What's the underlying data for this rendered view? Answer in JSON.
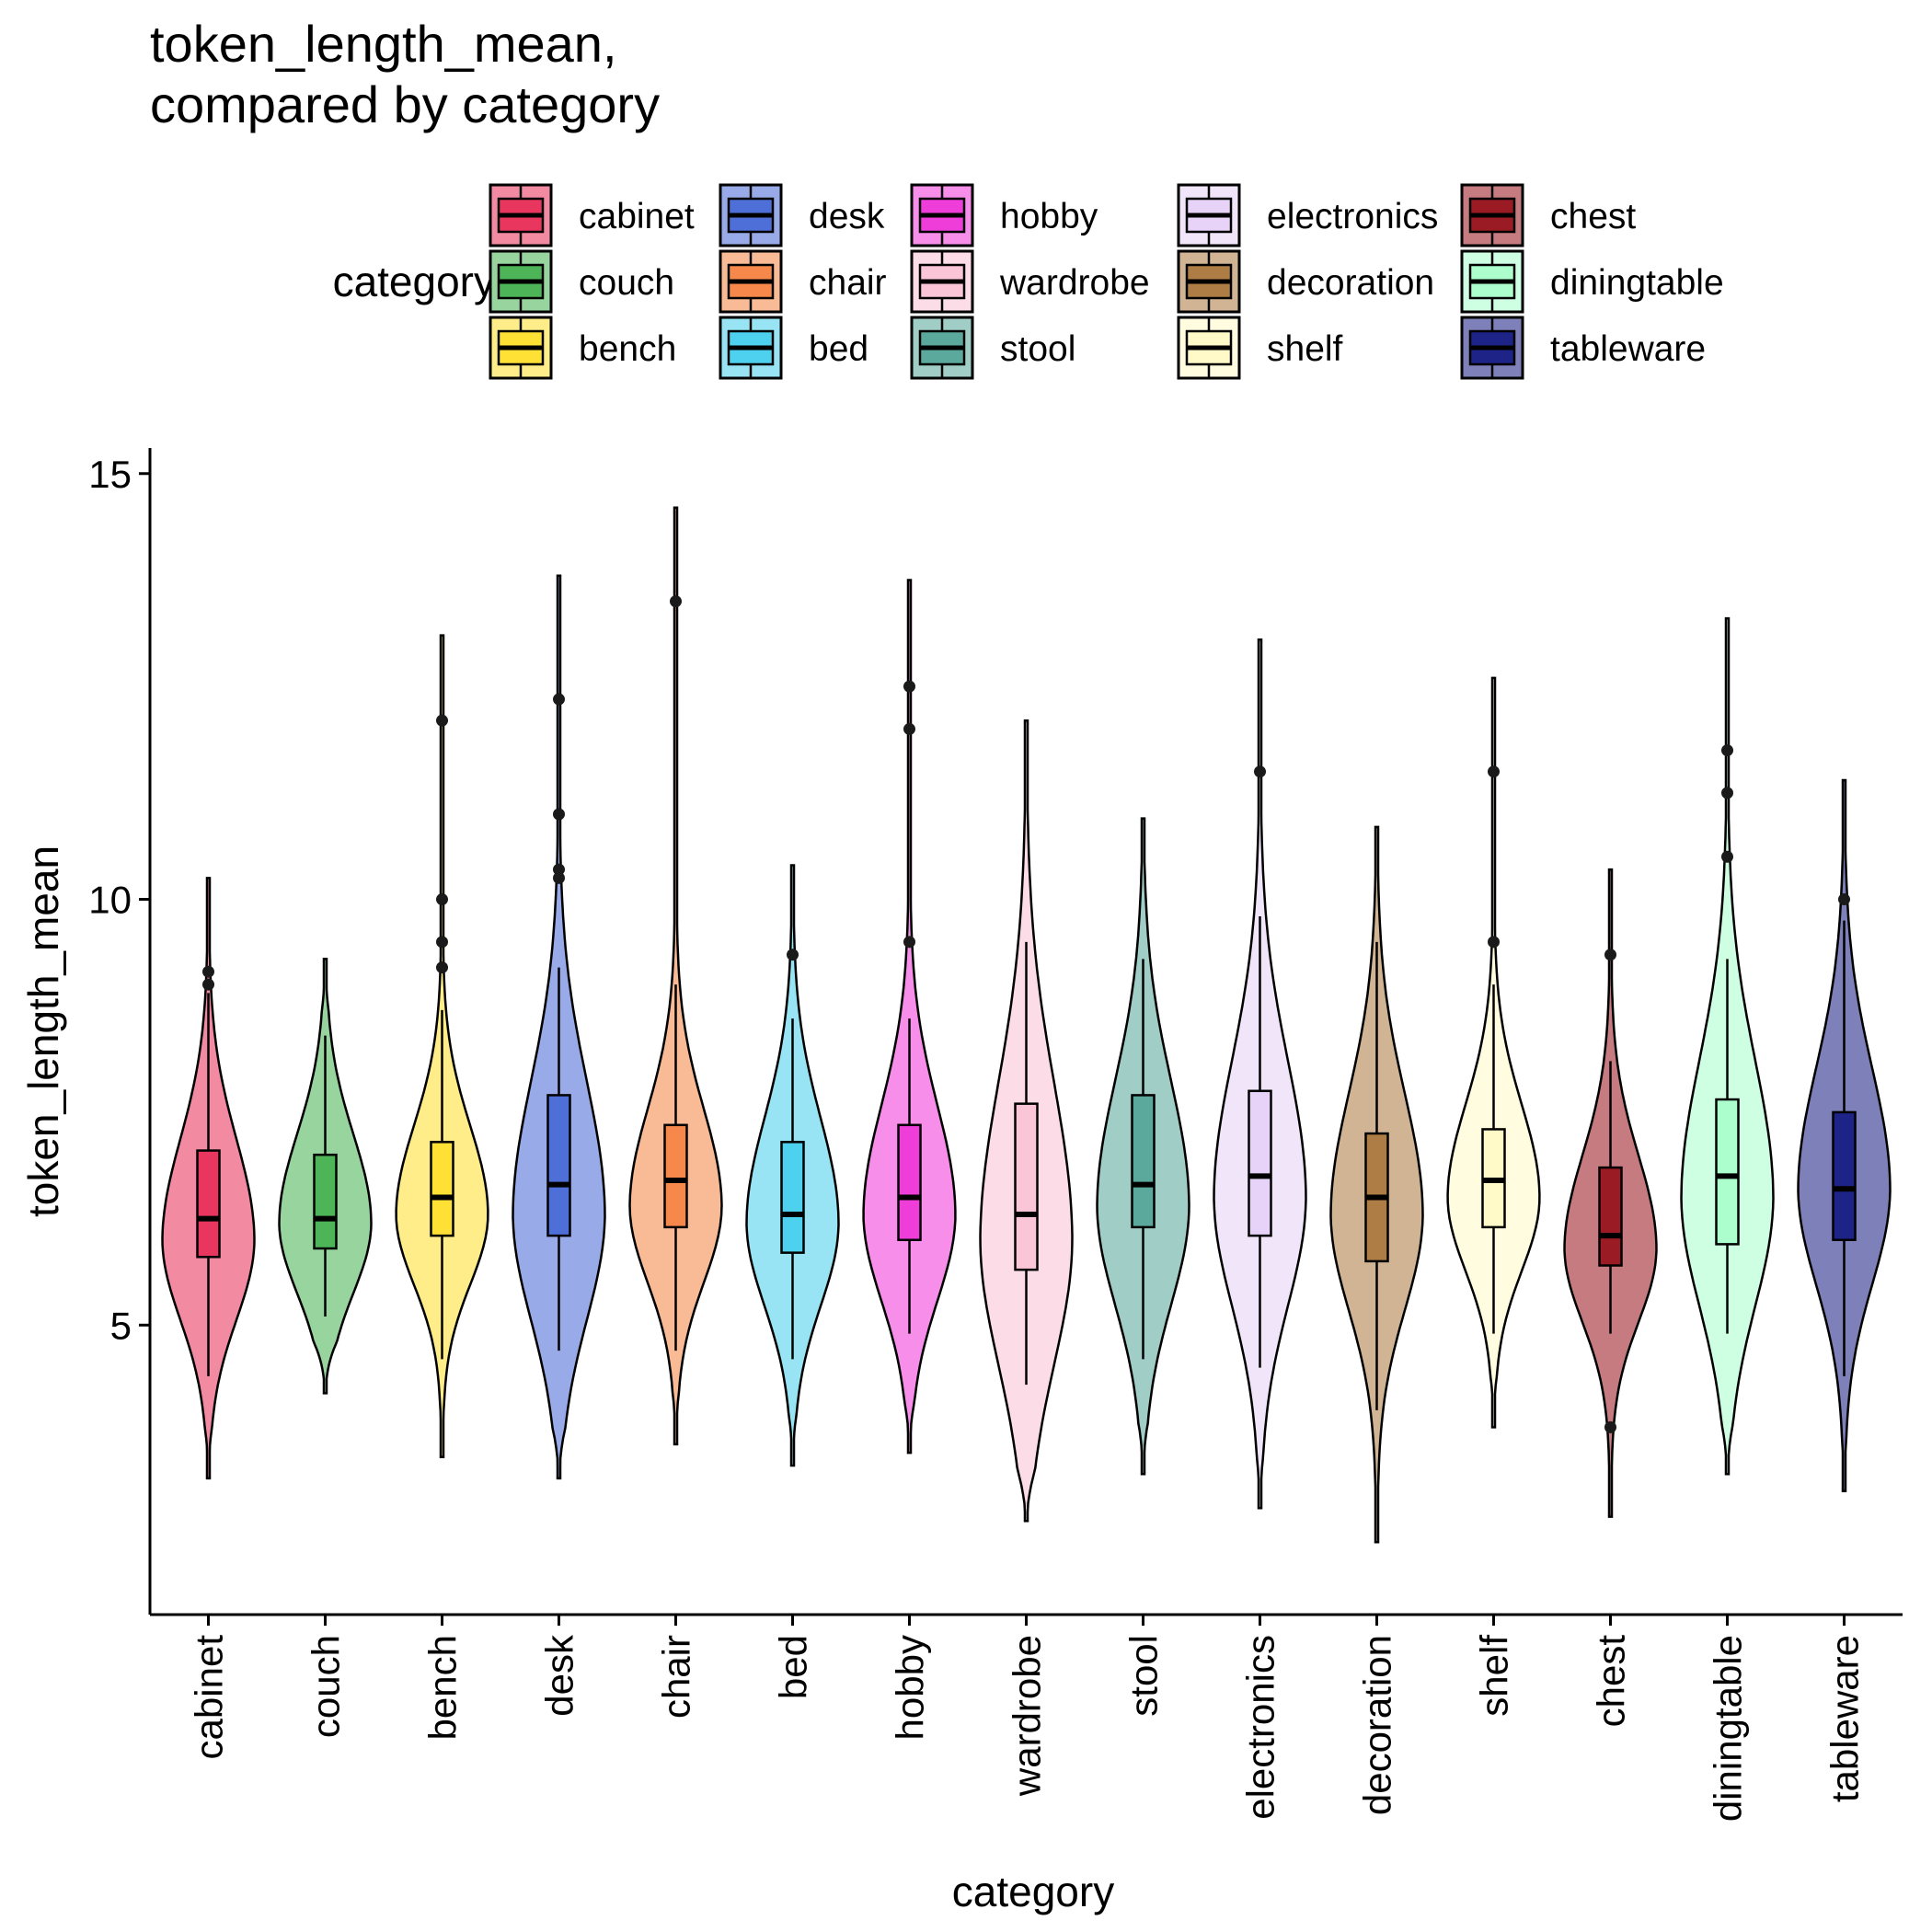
{
  "chart_data": {
    "type": "violin",
    "title_lines": [
      "token_length_mean,",
      "compared by category"
    ],
    "xlabel": "category",
    "ylabel": "token_length_mean",
    "ylim": [
      1.6,
      15.3
    ],
    "yticks": [
      5,
      10,
      15
    ],
    "grid": false,
    "legend": {
      "title": "category",
      "placement": "top",
      "columns": [
        [
          "cabinet",
          "couch",
          "bench"
        ],
        [
          "desk",
          "chair",
          "bed"
        ],
        [
          "hobby",
          "wardrobe",
          "stool"
        ],
        [
          "electronics",
          "decoration",
          "shelf"
        ],
        [
          "chest",
          "diningtable",
          "tableware"
        ]
      ]
    },
    "series": [
      {
        "category": "cabinet",
        "color": "#E8365E",
        "min": 3.2,
        "q1": 5.8,
        "median": 6.25,
        "q3": 7.05,
        "max": 10.25,
        "whisker_low": 4.4,
        "whisker_high": 8.9,
        "outliers": [
          9.0,
          9.15
        ],
        "density_peak": 6.0
      },
      {
        "category": "couch",
        "color": "#4DB457",
        "min": 4.2,
        "q1": 5.9,
        "median": 6.25,
        "q3": 7.0,
        "max": 9.3,
        "whisker_low": 5.1,
        "whisker_high": 8.4,
        "outliers": [],
        "density_peak": 6.2
      },
      {
        "category": "bench",
        "color": "#FFE034",
        "min": 3.45,
        "q1": 6.05,
        "median": 6.5,
        "q3": 7.15,
        "max": 13.1,
        "whisker_low": 4.6,
        "whisker_high": 8.7,
        "outliers": [
          9.2,
          9.5,
          10.0,
          12.1
        ],
        "density_peak": 6.3
      },
      {
        "category": "desk",
        "color": "#4E6FD8",
        "min": 3.2,
        "q1": 6.05,
        "median": 6.65,
        "q3": 7.7,
        "max": 13.8,
        "whisker_low": 4.7,
        "whisker_high": 9.2,
        "outliers": [
          10.25,
          10.35,
          11.0,
          12.35
        ],
        "density_peak": 6.3
      },
      {
        "category": "chair",
        "color": "#F5884A",
        "min": 3.6,
        "q1": 6.15,
        "median": 6.7,
        "q3": 7.35,
        "max": 14.6,
        "whisker_low": 4.7,
        "whisker_high": 9.0,
        "outliers": [
          13.5
        ],
        "density_peak": 6.4
      },
      {
        "category": "bed",
        "color": "#4DD1EE",
        "min": 3.35,
        "q1": 5.85,
        "median": 6.3,
        "q3": 7.15,
        "max": 10.4,
        "whisker_low": 4.6,
        "whisker_high": 8.6,
        "outliers": [
          9.35
        ],
        "density_peak": 6.2
      },
      {
        "category": "hobby",
        "color": "#EF3DDA",
        "min": 3.5,
        "q1": 6.0,
        "median": 6.5,
        "q3": 7.35,
        "max": 13.75,
        "whisker_low": 4.9,
        "whisker_high": 8.6,
        "outliers": [
          9.5,
          12.0,
          12.5
        ],
        "density_peak": 6.3
      },
      {
        "category": "wardrobe",
        "color": "#FAC5D6",
        "min": 2.7,
        "q1": 5.65,
        "median": 6.3,
        "q3": 7.6,
        "max": 12.1,
        "whisker_low": 4.3,
        "whisker_high": 9.5,
        "outliers": [],
        "density_peak": 6.0
      },
      {
        "category": "stool",
        "color": "#5BA99C",
        "min": 3.25,
        "q1": 6.15,
        "median": 6.65,
        "q3": 7.7,
        "max": 10.95,
        "whisker_low": 4.6,
        "whisker_high": 9.3,
        "outliers": [],
        "density_peak": 6.4
      },
      {
        "category": "electronics",
        "color": "#E6D3F7",
        "min": 2.85,
        "q1": 6.05,
        "median": 6.75,
        "q3": 7.75,
        "max": 13.05,
        "whisker_low": 4.5,
        "whisker_high": 9.8,
        "outliers": [
          11.5
        ],
        "density_peak": 6.5
      },
      {
        "category": "decoration",
        "color": "#AE7D46",
        "min": 2.45,
        "q1": 5.75,
        "median": 6.5,
        "q3": 7.25,
        "max": 10.85,
        "whisker_low": 4.0,
        "whisker_high": 9.5,
        "outliers": [],
        "density_peak": 6.3
      },
      {
        "category": "shelf",
        "color": "#FFFAC8",
        "min": 3.8,
        "q1": 6.15,
        "median": 6.7,
        "q3": 7.3,
        "max": 12.6,
        "whisker_low": 4.9,
        "whisker_high": 9.0,
        "outliers": [
          9.5,
          11.5
        ],
        "density_peak": 6.5
      },
      {
        "category": "chest",
        "color": "#9B1B24",
        "min": 2.75,
        "q1": 5.7,
        "median": 6.05,
        "q3": 6.85,
        "max": 10.35,
        "whisker_low": 4.9,
        "whisker_high": 8.1,
        "outliers": [
          3.8,
          9.35
        ],
        "density_peak": 5.9
      },
      {
        "category": "diningtable",
        "color": "#ACFFCD",
        "min": 3.25,
        "q1": 5.95,
        "median": 6.75,
        "q3": 7.65,
        "max": 13.3,
        "whisker_low": 4.9,
        "whisker_high": 9.3,
        "outliers": [
          10.5,
          11.25,
          11.75
        ],
        "density_peak": 6.5
      },
      {
        "category": "tableware",
        "color": "#1E2487",
        "min": 3.05,
        "q1": 6.0,
        "median": 6.6,
        "q3": 7.5,
        "max": 11.4,
        "whisker_low": 4.4,
        "whisker_high": 9.75,
        "outliers": [
          10.0
        ],
        "density_peak": 6.6
      }
    ]
  }
}
